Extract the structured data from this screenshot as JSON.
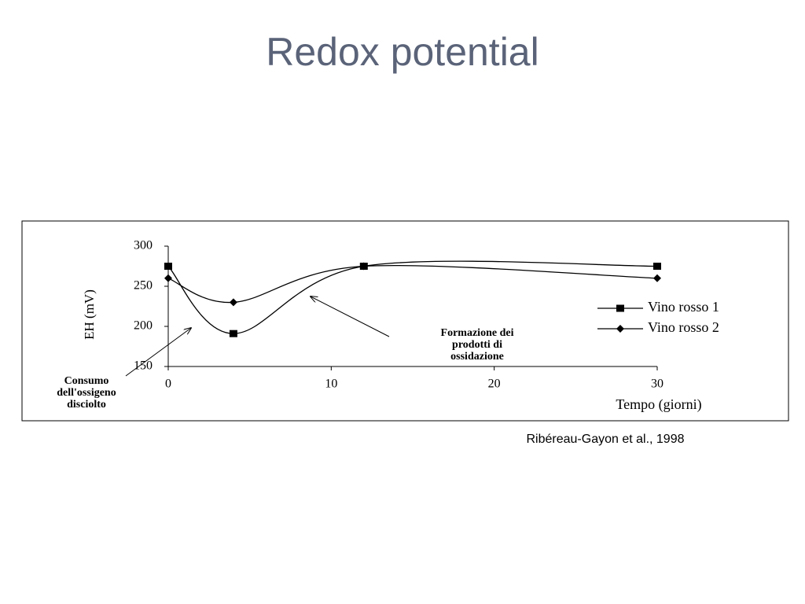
{
  "slide": {
    "title": "Redox potential",
    "citation": "Ribéreau-Gayon et al., 1998"
  },
  "chart_data": {
    "type": "line",
    "x_label": "Tempo (giorni)",
    "y_label": "EH (mV)",
    "xlim": [
      0,
      30
    ],
    "xticks": [
      0,
      10,
      20,
      30
    ],
    "ylim": [
      150,
      300
    ],
    "yticks": [
      150,
      200,
      250,
      300
    ],
    "legend": "right",
    "series": [
      {
        "name": "Vino rosso 1",
        "color": "#000000",
        "marker": "square",
        "x": [
          0,
          4,
          12,
          30
        ],
        "values": [
          275,
          191,
          275,
          275
        ]
      },
      {
        "name": "Vino rosso 2",
        "color": "#000000",
        "marker": "diamond",
        "x": [
          0,
          4,
          12,
          30
        ],
        "values": [
          260,
          230,
          275,
          260
        ]
      }
    ],
    "annotations": [
      {
        "lines": [
          "Consumo",
          "dell'ossigeno",
          "disciolto"
        ]
      },
      {
        "lines": [
          "Formazione dei",
          "prodotti di",
          "ossidazione"
        ]
      }
    ]
  }
}
